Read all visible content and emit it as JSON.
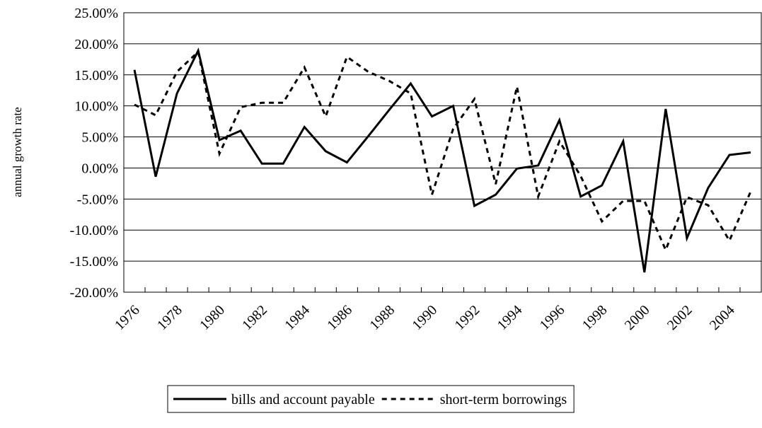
{
  "chart_data": {
    "type": "line",
    "y_label": "annual growth rate",
    "categories": [
      "1976",
      null,
      "1978",
      null,
      "1980",
      null,
      "1982",
      null,
      "1984",
      null,
      "1986",
      null,
      "1988",
      null,
      "1990",
      null,
      "1992",
      null,
      "1994",
      null,
      "1996",
      null,
      "1998",
      null,
      "2000",
      null,
      "2002",
      null,
      "2004",
      null
    ],
    "series": [
      {
        "name": "bills and account payable",
        "color": "#000000",
        "dash": "solid",
        "values": [
          15.8,
          -1.4,
          12.0,
          18.9,
          4.5,
          6.0,
          0.7,
          0.7,
          6.6,
          2.7,
          0.9,
          5.1,
          9.4,
          13.6,
          8.3,
          10.0,
          -6.1,
          -4.3,
          -0.1,
          0.4,
          7.7,
          -4.6,
          -2.8,
          4.3,
          -16.8,
          9.5,
          -11.3,
          -3.2,
          2.1,
          2.5
        ]
      },
      {
        "name": "short-term borrowings",
        "color": "#000000",
        "dash": "dashed",
        "values": [
          10.2,
          8.5,
          15.5,
          18.7,
          2.3,
          9.8,
          10.5,
          10.5,
          16.2,
          8.3,
          17.9,
          15.5,
          14.0,
          12.0,
          -4.3,
          6.3,
          11.1,
          -2.6,
          13.1,
          -4.6,
          4.3,
          -1.3,
          -8.6,
          -5.3,
          -5.3,
          -13.2,
          -4.7,
          -6.0,
          -11.7,
          -3.8
        ]
      }
    ],
    "ylim": [
      -20,
      25
    ],
    "yticks": [
      {
        "value": -20,
        "label": "-20.00%"
      },
      {
        "value": -15,
        "label": "-15.00%"
      },
      {
        "value": -10,
        "label": "-10.00%"
      },
      {
        "value": -5,
        "label": "-5.00%"
      },
      {
        "value": 0,
        "label": "0.00%"
      },
      {
        "value": 5,
        "label": "5.00%"
      },
      {
        "value": 10,
        "label": "10.00%"
      },
      {
        "value": 15,
        "label": "15.00%"
      },
      {
        "value": 20,
        "label": "20.00%"
      },
      {
        "value": 25,
        "label": "25.00%"
      }
    ],
    "grid": true,
    "legend": "bottom"
  }
}
